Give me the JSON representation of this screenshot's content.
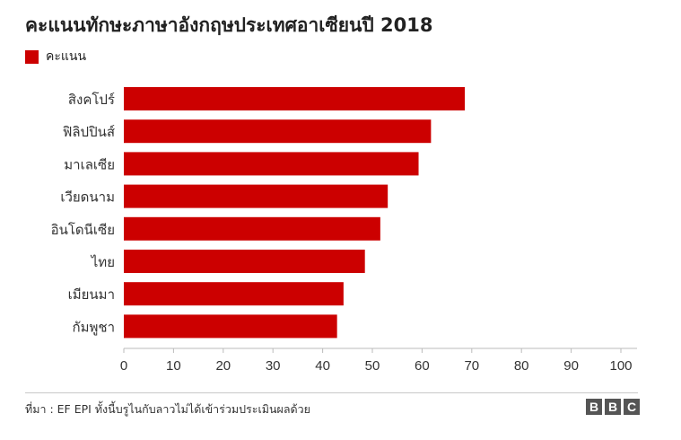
{
  "header": {
    "title": "คะแนนทักษะภาษาอังกฤษประเทศอาเซียนปี 2018"
  },
  "legend": {
    "label": "คะแนน",
    "color": "#cc0000"
  },
  "footer": {
    "source": "ที่มา : EF EPI ทั้งนี้บรูไนกับลาวไม่ได้เข้าร่วมประเมินผลด้วย",
    "logo_letters": [
      "B",
      "B",
      "C"
    ]
  },
  "chart_data": {
    "type": "bar",
    "orientation": "horizontal",
    "categories": [
      "สิงคโปร์",
      "ฟิลิปปินส์",
      "มาเลเซีย",
      "เวียดนาม",
      "อินโดนีเซีย",
      "ไทย",
      "เมียนมา",
      "กัมพูชา"
    ],
    "series": [
      {
        "name": "คะแนน",
        "values": [
          68.6,
          61.8,
          59.3,
          53.1,
          51.6,
          48.5,
          44.2,
          42.9
        ]
      }
    ],
    "xlim": [
      0,
      100
    ],
    "xticks": [
      0,
      10,
      20,
      30,
      40,
      50,
      60,
      70,
      80,
      90,
      100
    ],
    "grid": false,
    "legend_position": "top-left",
    "bar_color": "#cc0000"
  }
}
